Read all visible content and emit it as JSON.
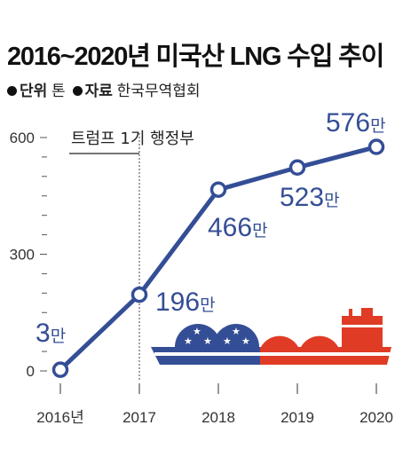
{
  "header": {
    "title": "2016~2020년 미국산 LNG 수입 추이",
    "unit_label": "단위",
    "unit_value": "톤",
    "source_label": "자료",
    "source_value": "한국무역협회"
  },
  "annotation": {
    "era_label": "트럼프 1기 행정부"
  },
  "colors": {
    "line": "#344e96",
    "usa_blue": "#344e96",
    "red": "#e03c25",
    "axis": "#555555"
  },
  "chart_data": {
    "type": "line",
    "title": "2016~2020년 미국산 LNG 수입 추이",
    "categories": [
      "2016년",
      "2017",
      "2018",
      "2019",
      "2020"
    ],
    "values": [
      3,
      196,
      466,
      523,
      576
    ],
    "data_labels": [
      "3만",
      "196만",
      "466만",
      "523만",
      "576만"
    ],
    "unit": "톤",
    "ylim": [
      0,
      620
    ],
    "yticks": [
      0,
      300,
      600
    ],
    "ytick_labels": [
      "0",
      "300",
      "600"
    ],
    "grid": false
  }
}
